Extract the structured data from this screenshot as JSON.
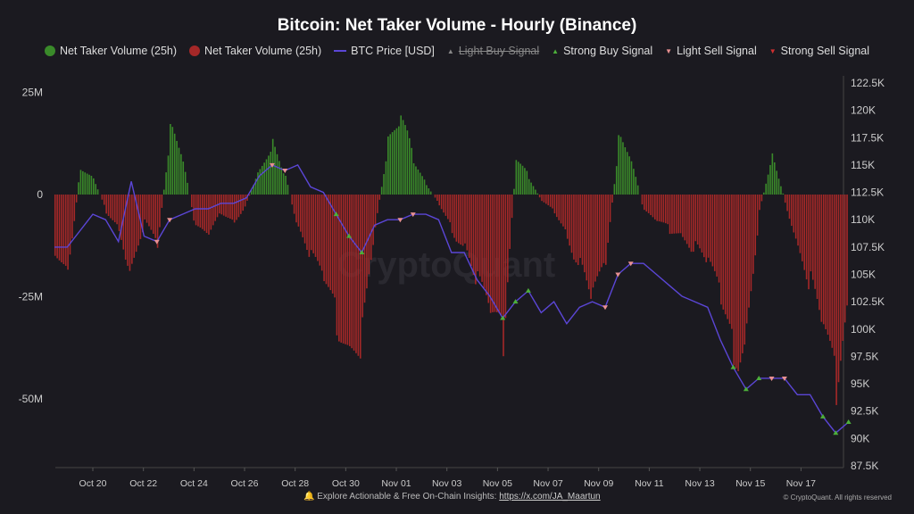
{
  "chart_data": {
    "type": "bar",
    "title": "Bitcoin: Net Taker Volume - Hourly (Binance)",
    "legend": [
      {
        "label": "Net Taker Volume (25h)",
        "color": "#3a8a2a",
        "marker": "circle"
      },
      {
        "label": "Net Taker Volume (25h)",
        "color": "#a52828",
        "marker": "circle"
      },
      {
        "label": "BTC Price [USD]",
        "color": "#5b46d6",
        "marker": "line"
      },
      {
        "label": "Light Buy Signal",
        "color": "#9a9a9a",
        "marker": "triangle-up",
        "hidden": true
      },
      {
        "label": "Strong Buy Signal",
        "color": "#4caf3a",
        "marker": "triangle-up"
      },
      {
        "label": "Light Sell Signal",
        "color": "#e89090",
        "marker": "triangle-down"
      },
      {
        "label": "Strong Sell Signal",
        "color": "#d03030",
        "marker": "triangle-down"
      }
    ],
    "legend_placement": "top",
    "x_ticks": [
      "Oct 20",
      "Oct 22",
      "Oct 24",
      "Oct 26",
      "Oct 28",
      "Oct 30",
      "Nov 01",
      "Nov 03",
      "Nov 05",
      "Nov 07",
      "Nov 09",
      "Nov 11",
      "Nov 13",
      "Nov 15",
      "Nov 17"
    ],
    "y_left_ticks": [
      "25M",
      "0",
      "-25M",
      "-50M"
    ],
    "y_left_range": [
      -60,
      30
    ],
    "y_right_ticks": [
      "122.5K",
      "120K",
      "117.5K",
      "115K",
      "112.5K",
      "110K",
      "107.5K",
      "105K",
      "102.5K",
      "100K",
      "97.5K",
      "95K",
      "92.5K",
      "90K",
      "87.5K"
    ],
    "y_right_range": [
      87.5,
      122.5
    ],
    "x_start_day": "Oct 18 12:00",
    "x_step": "12h",
    "volume_millions": [
      -15,
      -22,
      8,
      5,
      -5,
      -10,
      -22,
      -8,
      -15,
      18,
      10,
      -10,
      -12,
      -5,
      -8,
      -2,
      8,
      15,
      5,
      -10,
      -18,
      -25,
      -35,
      -45,
      -40,
      -10,
      15,
      22,
      10,
      3,
      -3,
      -10,
      -15,
      -25,
      -35,
      -40,
      10,
      5,
      -2,
      -5,
      -12,
      -20,
      -30,
      -20,
      15,
      10,
      -5,
      -8,
      -10,
      -12,
      -15,
      -20,
      -30,
      -45,
      -40,
      -5,
      12,
      -2,
      -15,
      -25,
      -40,
      -55,
      -30
    ],
    "price_k": [
      107.5,
      107.5,
      109,
      110.5,
      110,
      108,
      113.5,
      108.5,
      108,
      110,
      110.5,
      111,
      111,
      111.5,
      111.5,
      112,
      114,
      115,
      114.5,
      115,
      113,
      112.5,
      110.5,
      108.5,
      107,
      109.5,
      110,
      110,
      110.5,
      110.5,
      110,
      107,
      107,
      104.5,
      103,
      101,
      102.5,
      103.5,
      101.5,
      102.5,
      100.5,
      102,
      102.5,
      102,
      105,
      106,
      106,
      105,
      104,
      103,
      102.5,
      102,
      99,
      96.5,
      94.5,
      95.5,
      95.5,
      95.5,
      94,
      94,
      92,
      90.5,
      91.5
    ],
    "strong_buy_idx": [
      22,
      23,
      24,
      35,
      36,
      37,
      53,
      54,
      55,
      60,
      61,
      62
    ],
    "light_sell_idx": [
      8,
      9,
      17,
      18,
      27,
      28,
      43,
      44,
      45,
      56,
      57
    ]
  },
  "footer": {
    "text": "Explore Actionable & Free On-Chain Insights: ",
    "link": "https://x.com/JA_Maartun",
    "copyright": "© CryptoQuant. All rights reserved"
  },
  "watermark": "CryptoQuant"
}
